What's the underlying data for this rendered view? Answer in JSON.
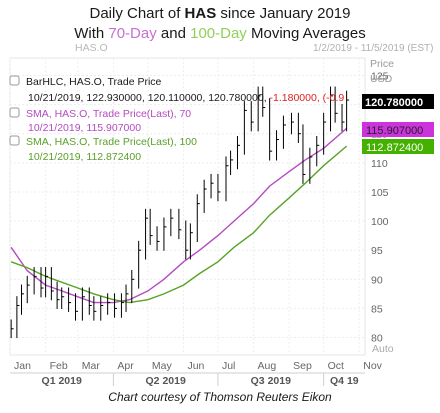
{
  "title": {
    "prefix": "Daily Chart of ",
    "ticker": "HAS",
    "suffix": " since January 2019",
    "line2_with": "With ",
    "sma70_label": "70-Day",
    "line2_and": " and ",
    "sma100_label": "100-Day",
    "line2_tail": " Moving Averages"
  },
  "header": {
    "symbol_faded": "HAS.O",
    "date_range": "1/2/2019 - 11/5/2019 (EST)",
    "axis_unit_1": "Price",
    "axis_unit_2": "USD",
    "auto_label": "Auto"
  },
  "legend": [
    {
      "line1": "BarHLC, HAS.O, Trade Price",
      "line2": "10/21/2019, 122.930000, 120.110000, 120.780000, ",
      "change": "-1.180000, (-0.9",
      "color": "#1a1a1a"
    },
    {
      "line1": "SMA, HAS.O, Trade Price(Last), 70",
      "line2": "10/21/2019, 115.907000",
      "color": "#b44bc0"
    },
    {
      "line1": "SMA, HAS.O, Trade Price(Last), 100",
      "line2": "10/21/2019, 112.872400",
      "color": "#5aa02a"
    }
  ],
  "colors": {
    "price": "#000000",
    "sma70": "#b44bc0",
    "sma100": "#57a326",
    "change_negative": "#e02020",
    "price_tag_bg": "#000000",
    "sma70_tag_bg": "#cc33dd",
    "sma100_tag_bg": "#44b000"
  },
  "footer": "Chart courtesy of Thomson Reuters Eikon",
  "chart_data": {
    "type": "line",
    "title": "Daily Chart of HAS since January 2019 With 70-Day and 100-Day Moving Averages",
    "xlabel": "",
    "ylabel": "Price USD",
    "ylim": [
      77,
      128
    ],
    "x_ticks_months": [
      "Jan",
      "Feb",
      "Mar",
      "Apr",
      "May",
      "Jun",
      "Jul",
      "Aug",
      "Sep",
      "Oct",
      "Nov"
    ],
    "x_ticks_quarters": [
      "Q1 2019",
      "Q2 2019",
      "Q3 2019",
      "Q4 19"
    ],
    "y_ticks": [
      80,
      85,
      90,
      95,
      100,
      105,
      110,
      115,
      120,
      125
    ],
    "grid": true,
    "legend_position": "top-left",
    "last_values": {
      "price": "120.780000",
      "sma70": "115.907000",
      "sma100": "112.872400"
    },
    "series": [
      {
        "name": "HAS.O Trade Price (BarHLC close)",
        "x": [
          "2019-01-02",
          "2019-01-07",
          "2019-01-11",
          "2019-01-16",
          "2019-01-22",
          "2019-01-28",
          "2019-02-01",
          "2019-02-06",
          "2019-02-11",
          "2019-02-15",
          "2019-02-21",
          "2019-02-27",
          "2019-03-05",
          "2019-03-11",
          "2019-03-15",
          "2019-03-21",
          "2019-03-27",
          "2019-04-02",
          "2019-04-08",
          "2019-04-12",
          "2019-04-17",
          "2019-04-23",
          "2019-04-29",
          "2019-05-03",
          "2019-05-09",
          "2019-05-15",
          "2019-05-21",
          "2019-05-28",
          "2019-06-03",
          "2019-06-07",
          "2019-06-13",
          "2019-06-19",
          "2019-06-25",
          "2019-07-01",
          "2019-07-08",
          "2019-07-12",
          "2019-07-18",
          "2019-07-24",
          "2019-07-30",
          "2019-08-05",
          "2019-08-09",
          "2019-08-15",
          "2019-08-21",
          "2019-08-27",
          "2019-09-03",
          "2019-09-09",
          "2019-09-13",
          "2019-09-19",
          "2019-09-25",
          "2019-10-01",
          "2019-10-07",
          "2019-10-11",
          "2019-10-17",
          "2019-10-21"
        ],
        "values": [
          81.5,
          85.5,
          87.5,
          89.0,
          90.5,
          88.5,
          90.5,
          88.0,
          86.5,
          87.0,
          86.0,
          84.5,
          87.0,
          85.5,
          84.5,
          85.5,
          86.0,
          85.0,
          86.0,
          87.5,
          90.0,
          95.0,
          100.5,
          97.5,
          96.5,
          99.0,
          100.5,
          98.5,
          95.0,
          98.0,
          103.0,
          105.5,
          106.5,
          105.0,
          109.5,
          110.5,
          113.0,
          119.0,
          117.0,
          121.5,
          119.5,
          112.0,
          114.0,
          116.5,
          117.0,
          115.0,
          108.0,
          111.0,
          113.0,
          117.0,
          121.5,
          118.5,
          117.0,
          120.78
        ]
      },
      {
        "name": "SMA 70",
        "x": [
          "2019-01-02",
          "2019-01-16",
          "2019-02-01",
          "2019-02-15",
          "2019-03-01",
          "2019-03-15",
          "2019-04-01",
          "2019-04-15",
          "2019-05-01",
          "2019-05-15",
          "2019-06-01",
          "2019-06-15",
          "2019-07-01",
          "2019-07-15",
          "2019-08-01",
          "2019-08-15",
          "2019-09-01",
          "2019-09-15",
          "2019-10-01",
          "2019-10-21"
        ],
        "values": [
          95.5,
          91.5,
          89.0,
          88.0,
          87.0,
          86.0,
          86.0,
          86.5,
          88.0,
          90.0,
          93.0,
          95.0,
          97.5,
          100.0,
          103.0,
          106.0,
          108.5,
          110.5,
          112.5,
          115.907
        ]
      },
      {
        "name": "SMA 100",
        "x": [
          "2019-01-02",
          "2019-01-16",
          "2019-02-01",
          "2019-02-15",
          "2019-03-01",
          "2019-03-15",
          "2019-04-01",
          "2019-04-15",
          "2019-05-01",
          "2019-05-15",
          "2019-06-01",
          "2019-06-15",
          "2019-07-01",
          "2019-07-15",
          "2019-08-01",
          "2019-08-15",
          "2019-09-01",
          "2019-09-15",
          "2019-10-01",
          "2019-10-21"
        ],
        "values": [
          93.0,
          92.0,
          90.5,
          89.5,
          88.5,
          87.5,
          86.5,
          86.0,
          86.5,
          87.5,
          89.0,
          91.0,
          93.0,
          95.5,
          98.0,
          101.0,
          104.0,
          106.5,
          109.5,
          112.8724
        ]
      }
    ]
  }
}
